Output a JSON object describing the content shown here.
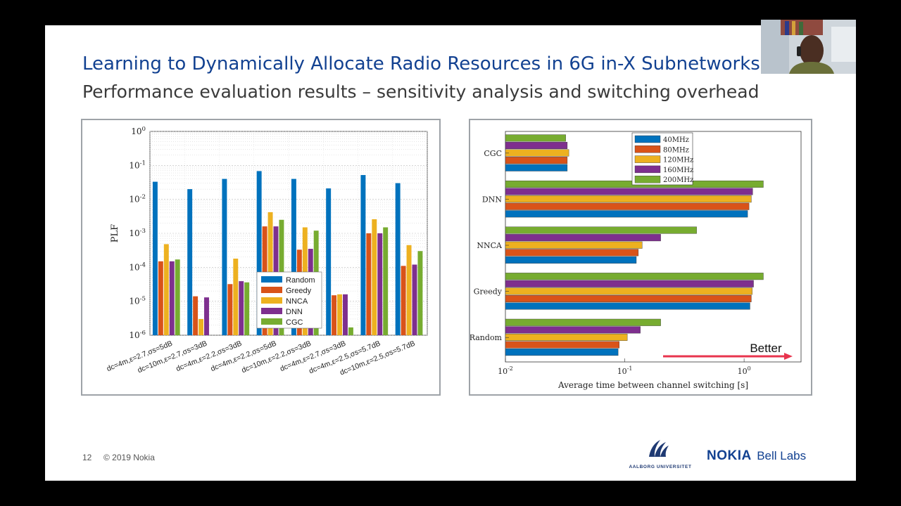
{
  "slide": {
    "title": "Learning to Dynamically Allocate Radio Resources in 6G in-X Subnetworks",
    "subtitle": "Performance evaluation results – sensitivity analysis and switching overhead",
    "page_number": "12",
    "copyright": "© 2019 Nokia",
    "logos": {
      "aalborg": "AALBORG UNIVERSITET",
      "nokia": "NOKIA",
      "bell_labs": "Bell Labs"
    },
    "colors": {
      "title": "#124191",
      "nokia_blue": "#124191",
      "better_arrow": "#e8344e"
    }
  },
  "chart_data": [
    {
      "type": "bar",
      "ylabel": "PLF",
      "yscale": "log",
      "ylim": [
        1e-06,
        1
      ],
      "yticks": [
        "10^0",
        "10^-1",
        "10^-2",
        "10^-3",
        "10^-4",
        "10^-5",
        "10^-6"
      ],
      "grid": true,
      "legend_position": "center-right",
      "categories": [
        "dc=4m,ε=2.7,σs=5dB",
        "dc=10m,ε=2.7,σs=3dB",
        "dc=4m,ε=2.2,σs=3dB",
        "dc=4m,ε=2.2,σs=5dB",
        "dc=10m,ε=2.2,σs=3dB",
        "dc=4m,ε=2.7,σs=3dB",
        "dc=4m,ε=2.5,σs=5.7dB",
        "dc=10m,ε=2.5,σs=5.7dB"
      ],
      "series": [
        {
          "name": "Random",
          "color": "#0072bd",
          "values": [
            0.033,
            0.02,
            0.04,
            0.068,
            0.04,
            0.021,
            0.052,
            0.03
          ]
        },
        {
          "name": "Greedy",
          "color": "#d95319",
          "values": [
            0.00015,
            1.4e-05,
            3.2e-05,
            0.0016,
            0.00033,
            1.5e-05,
            0.001,
            0.00011
          ]
        },
        {
          "name": "NNCA",
          "color": "#edb120",
          "values": [
            0.00048,
            3e-06,
            0.00018,
            0.0042,
            0.0015,
            1.6e-05,
            0.0026,
            0.00045
          ]
        },
        {
          "name": "DNN",
          "color": "#7e2f8e",
          "values": [
            0.00015,
            1.3e-05,
            3.9e-05,
            0.0016,
            0.00035,
            1.6e-05,
            0.001,
            0.00012
          ]
        },
        {
          "name": "CGC",
          "color": "#77ac30",
          "values": [
            0.00017,
            9e-07,
            3.6e-05,
            0.0025,
            0.0012,
            1.7e-06,
            0.0015,
            0.0003
          ]
        }
      ]
    },
    {
      "type": "bar",
      "orientation": "horizontal",
      "xlabel": "Average time between channel switching [s]",
      "xscale": "log",
      "xlim": [
        0.01,
        3
      ],
      "xticks": [
        "10^-2",
        "10^-1",
        "10^0"
      ],
      "categories": [
        "CGC",
        "DNN",
        "NNCA",
        "Greedy",
        "Random"
      ],
      "legend_position": "top-center",
      "annotation": "Better",
      "series": [
        {
          "name": "40MHz",
          "color": "#0072bd",
          "values": [
            0.033,
            1.07,
            0.125,
            1.12,
            0.088
          ]
        },
        {
          "name": "80MHz",
          "color": "#d95319",
          "values": [
            0.033,
            1.1,
            0.13,
            1.15,
            0.09
          ]
        },
        {
          "name": "120MHz",
          "color": "#edb120",
          "values": [
            0.034,
            1.15,
            0.14,
            1.17,
            0.105
          ]
        },
        {
          "name": "160MHz",
          "color": "#7e2f8e",
          "values": [
            0.033,
            1.18,
            0.2,
            1.2,
            0.135
          ]
        },
        {
          "name": "200MHz",
          "color": "#77ac30",
          "values": [
            0.032,
            1.45,
            0.4,
            1.45,
            0.2
          ]
        }
      ]
    }
  ]
}
